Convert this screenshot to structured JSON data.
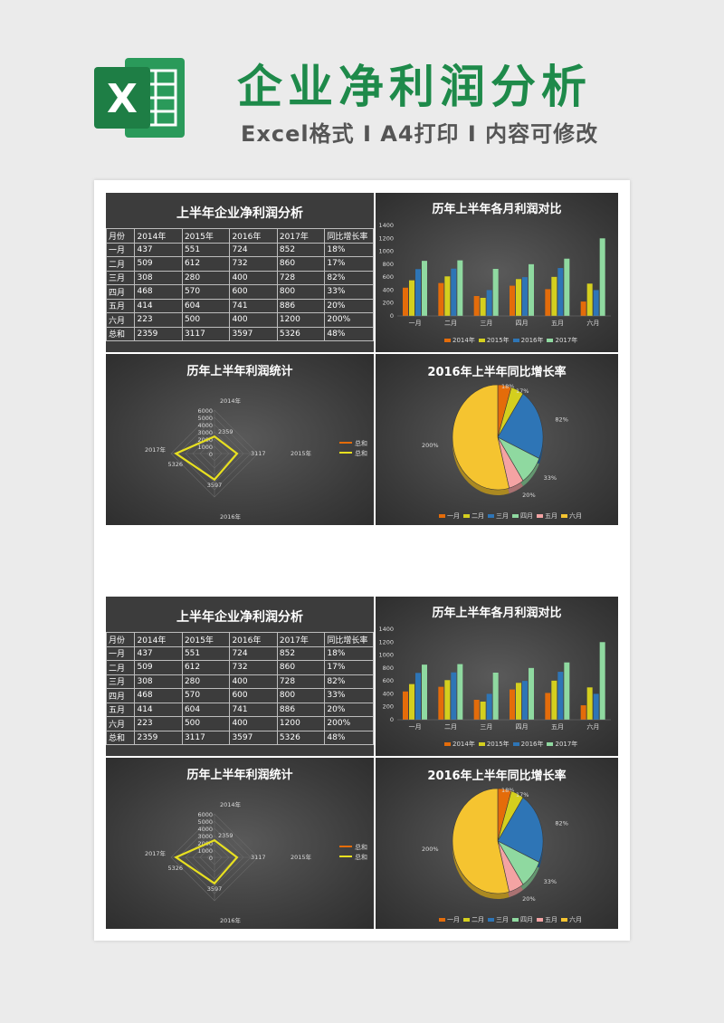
{
  "header": {
    "title": "企业净利润分析",
    "subtitle": "Excel格式 I A4打印 I 内容可修改",
    "logo_letter": "X"
  },
  "colors": {
    "brand_green": "#1e8a4a",
    "s2014": "#e46c0a",
    "s2015": "#d4cf1e",
    "s2016": "#2e75b6",
    "s2017": "#8fd9a0"
  },
  "table": {
    "title": "上半年企业净利润分析",
    "headers": [
      "月份",
      "2014年",
      "2015年",
      "2016年",
      "2017年",
      "同比增长率"
    ],
    "rows": [
      [
        "一月",
        "437",
        "551",
        "724",
        "852",
        "18%"
      ],
      [
        "二月",
        "509",
        "612",
        "732",
        "860",
        "17%"
      ],
      [
        "三月",
        "308",
        "280",
        "400",
        "728",
        "82%"
      ],
      [
        "四月",
        "468",
        "570",
        "600",
        "800",
        "33%"
      ],
      [
        "五月",
        "414",
        "604",
        "741",
        "886",
        "20%"
      ],
      [
        "六月",
        "223",
        "500",
        "400",
        "1200",
        "200%"
      ],
      [
        "总和",
        "2359",
        "3117",
        "3597",
        "5326",
        "48%"
      ]
    ]
  },
  "chart_data": [
    {
      "type": "bar",
      "title": "历年上半年各月利润对比",
      "categories": [
        "一月",
        "二月",
        "三月",
        "四月",
        "五月",
        "六月"
      ],
      "series": [
        {
          "name": "2014年",
          "values": [
            437,
            509,
            308,
            468,
            414,
            223
          ]
        },
        {
          "name": "2015年",
          "values": [
            551,
            612,
            280,
            570,
            604,
            500
          ]
        },
        {
          "name": "2016年",
          "values": [
            724,
            732,
            400,
            600,
            741,
            400
          ]
        },
        {
          "name": "2017年",
          "values": [
            852,
            860,
            728,
            800,
            886,
            1200
          ]
        }
      ],
      "ylim": [
        0,
        1400
      ],
      "yticks": [
        "0",
        "200",
        "400",
        "600",
        "800",
        "1000",
        "1200",
        "1400"
      ],
      "legend": "bottom"
    },
    {
      "type": "radar",
      "title": "历年上半年利润统计",
      "axes": [
        "2014年",
        "2015年",
        "2016年",
        "2017年"
      ],
      "values": [
        2359,
        3117,
        3597,
        5326
      ],
      "value_labels": [
        "2359",
        "3117",
        "3597",
        "5326"
      ],
      "rlim": [
        0,
        6000
      ],
      "rticks": [
        "0",
        "1000",
        "2000",
        "3000",
        "4000",
        "5000",
        "6000"
      ],
      "legend_items": [
        "总和",
        "总和"
      ],
      "legend": "right"
    },
    {
      "type": "pie",
      "title": "2016年上半年同比增长率",
      "categories": [
        "一月",
        "二月",
        "三月",
        "四月",
        "五月",
        "六月"
      ],
      "values": [
        18,
        17,
        82,
        33,
        20,
        200
      ],
      "labels": [
        "18%",
        "17%",
        "82%",
        "33%",
        "20%",
        "200%"
      ],
      "slice_colors": [
        "#e46c0a",
        "#d4cf1e",
        "#2e75b6",
        "#8fd9a0",
        "#f4a3a3",
        "#f5c430"
      ],
      "legend": "bottom"
    }
  ]
}
